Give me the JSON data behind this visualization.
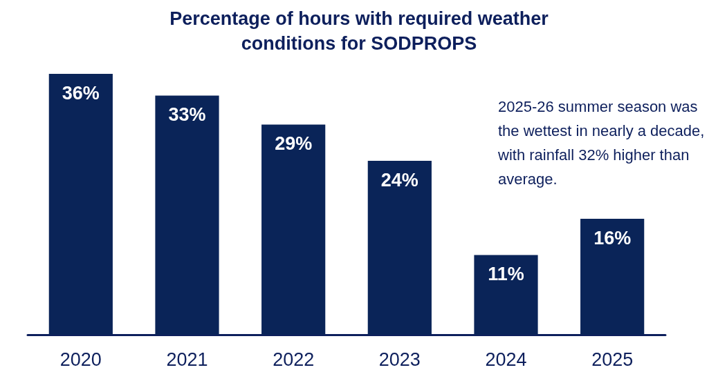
{
  "chart_data": {
    "type": "bar",
    "title": "Percentage of hours with required weather\nconditions for SODPROPS",
    "categories": [
      "2020",
      "2021",
      "2022",
      "2023",
      "2024",
      "2025"
    ],
    "values": [
      36,
      33,
      29,
      24,
      11,
      16
    ],
    "value_labels": [
      "36%",
      "33%",
      "29%",
      "24%",
      "11%",
      "16%"
    ],
    "color": "#0a2458",
    "annotations": [
      "2025-26 summer season was the wettest in nearly a decade, with rainfall 32% higher than average."
    ]
  }
}
